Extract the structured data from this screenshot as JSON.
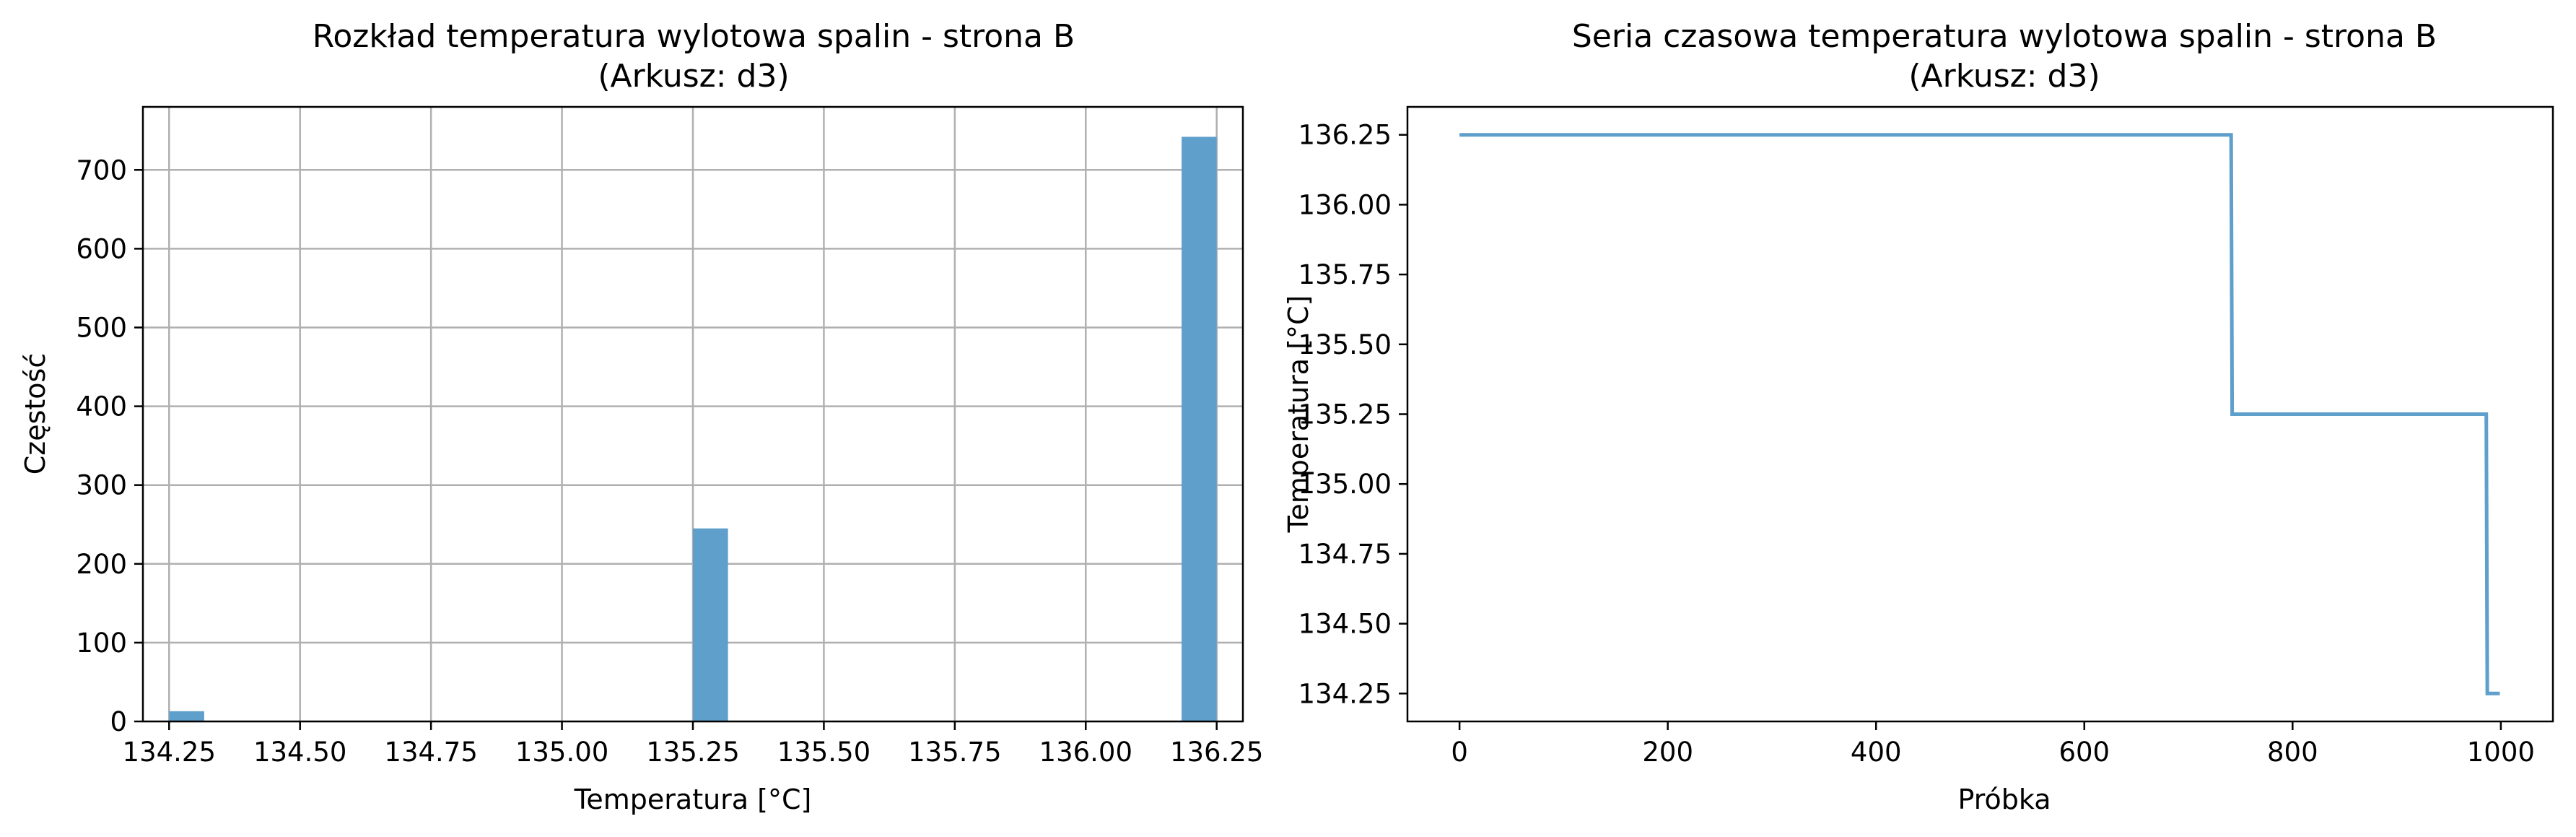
{
  "chart_data": [
    {
      "type": "bar",
      "title": "Rozkład temperatura wylotowa spalin - strona B",
      "subtitle": "(Arkusz: d3)",
      "xlabel": "Temperatura [°C]",
      "ylabel": "Częstość",
      "xlim": [
        134.2,
        136.3
      ],
      "ylim": [
        0,
        780
      ],
      "xticks": [
        134.25,
        134.5,
        134.75,
        135.0,
        135.25,
        135.5,
        135.75,
        136.0,
        136.25
      ],
      "xtick_labels": [
        "134.25",
        "134.50",
        "134.75",
        "135.00",
        "135.25",
        "135.50",
        "135.75",
        "136.00",
        "136.25"
      ],
      "yticks": [
        0,
        100,
        200,
        300,
        400,
        500,
        600,
        700
      ],
      "ytick_labels": [
        "0",
        "100",
        "200",
        "300",
        "400",
        "500",
        "600",
        "700"
      ],
      "grid": true,
      "bar_color": "#5f9fcb",
      "bars": [
        {
          "x0": 134.25,
          "x1": 134.317,
          "value": 13
        },
        {
          "x0": 135.25,
          "x1": 135.317,
          "value": 245
        },
        {
          "x0": 136.183,
          "x1": 136.25,
          "value": 742
        }
      ]
    },
    {
      "type": "line",
      "title": "Seria czasowa temperatura wylotowa spalin - strona B",
      "subtitle": "(Arkusz: d3)",
      "xlabel": "Próbka",
      "ylabel": "Temperatura [°C]",
      "xlim": [
        -50,
        1050
      ],
      "ylim": [
        134.15,
        136.35
      ],
      "xticks": [
        0,
        200,
        400,
        600,
        800,
        1000
      ],
      "xtick_labels": [
        "0",
        "200",
        "400",
        "600",
        "800",
        "1000"
      ],
      "yticks": [
        134.25,
        134.5,
        134.75,
        135.0,
        135.25,
        135.5,
        135.75,
        136.0,
        136.25
      ],
      "ytick_labels": [
        "134.25",
        "134.50",
        "134.75",
        "135.00",
        "135.25",
        "135.50",
        "135.75",
        "136.00",
        "136.25"
      ],
      "grid": false,
      "line_color": "#5f9fcb",
      "x": [
        0,
        741,
        742,
        986,
        987,
        999
      ],
      "y": [
        136.25,
        136.25,
        135.25,
        135.25,
        134.25,
        134.25
      ]
    }
  ]
}
